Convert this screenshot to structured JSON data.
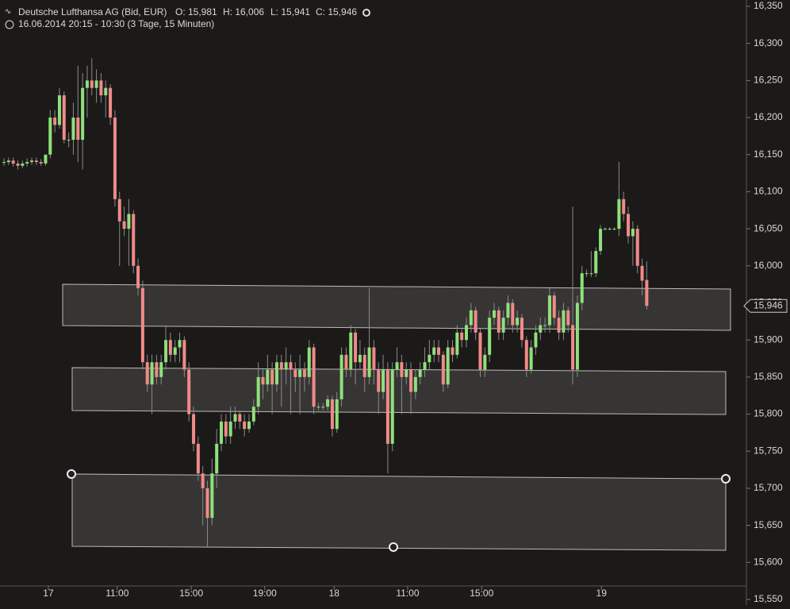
{
  "chart_data": {
    "type": "candlestick",
    "title": "Deutsche Lufthansa AG (Bid, EUR)",
    "subtitle": "16.06.2014 20:15 - 10:30 (3 Tage, 15 Minuten)",
    "ohlc_labels": [
      "O: 15,981",
      "H: 16,006",
      "L: 15,941",
      "C: 15,946"
    ],
    "last_price": {
      "value": 15.946,
      "label": "15,946"
    },
    "up_color": "#8fe07a",
    "down_color": "#f08a8a",
    "ylim": [
      15.55,
      16.35
    ],
    "yticks": [
      {
        "value": 15.55,
        "label": "15,550"
      },
      {
        "value": 15.6,
        "label": "15,600"
      },
      {
        "value": 15.65,
        "label": "15,650"
      },
      {
        "value": 15.7,
        "label": "15,700"
      },
      {
        "value": 15.75,
        "label": "15,750"
      },
      {
        "value": 15.8,
        "label": "15,800"
      },
      {
        "value": 15.85,
        "label": "15,850"
      },
      {
        "value": 15.9,
        "label": "15,900"
      },
      {
        "value": 15.95,
        "label": "15,950"
      },
      {
        "value": 16.0,
        "label": "16,000"
      },
      {
        "value": 16.05,
        "label": "16,050"
      },
      {
        "value": 16.1,
        "label": "16,100"
      },
      {
        "value": 16.15,
        "label": "16,150"
      },
      {
        "value": 16.2,
        "label": "16,200"
      },
      {
        "value": 16.25,
        "label": "16,250"
      },
      {
        "value": 16.3,
        "label": "16,300"
      },
      {
        "value": 16.35,
        "label": "16,350"
      }
    ],
    "xticks": [
      {
        "value": 9.6,
        "label": "17"
      },
      {
        "value": 24.5,
        "label": "11:00"
      },
      {
        "value": 40.5,
        "label": "15:00"
      },
      {
        "value": 56.4,
        "label": "19:00"
      },
      {
        "value": 71.4,
        "label": "18"
      },
      {
        "value": 87.3,
        "label": "11:00"
      },
      {
        "value": 103.3,
        "label": "15:00"
      },
      {
        "value": 129.2,
        "label": "19"
      }
    ],
    "candles": [
      [
        16.14,
        16.145,
        16.135,
        16.14
      ],
      [
        16.14,
        16.146,
        16.136,
        16.142
      ],
      [
        16.142,
        16.146,
        16.134,
        16.138
      ],
      [
        16.138,
        16.142,
        16.13,
        16.135
      ],
      [
        16.135,
        16.142,
        16.132,
        16.138
      ],
      [
        16.138,
        16.145,
        16.134,
        16.14
      ],
      [
        16.14,
        16.146,
        16.136,
        16.142
      ],
      [
        16.142,
        16.146,
        16.136,
        16.14
      ],
      [
        16.14,
        16.144,
        16.135,
        16.138
      ],
      [
        16.138,
        16.15,
        16.135,
        16.15
      ],
      [
        16.15,
        16.21,
        16.145,
        16.2
      ],
      [
        16.2,
        16.21,
        16.18,
        16.19
      ],
      [
        16.19,
        16.24,
        16.185,
        16.23
      ],
      [
        16.23,
        16.235,
        16.165,
        16.17
      ],
      [
        16.17,
        16.18,
        16.16,
        16.17
      ],
      [
        16.17,
        16.22,
        16.15,
        16.2
      ],
      [
        16.2,
        16.27,
        16.14,
        16.17
      ],
      [
        16.17,
        16.26,
        16.13,
        16.24
      ],
      [
        16.24,
        16.27,
        16.2,
        16.25
      ],
      [
        16.25,
        16.28,
        16.23,
        16.24
      ],
      [
        16.24,
        16.265,
        16.22,
        16.25
      ],
      [
        16.25,
        16.26,
        16.22,
        16.23
      ],
      [
        16.23,
        16.25,
        16.2,
        16.24
      ],
      [
        16.24,
        16.245,
        16.19,
        16.2
      ],
      [
        16.2,
        16.21,
        16.08,
        16.09
      ],
      [
        16.09,
        16.1,
        16.0,
        16.06
      ],
      [
        16.06,
        16.08,
        16.04,
        16.05
      ],
      [
        16.05,
        16.09,
        16.0,
        16.07
      ],
      [
        16.07,
        16.075,
        15.99,
        16.0
      ],
      [
        16.0,
        16.01,
        15.96,
        15.97
      ],
      [
        15.97,
        15.98,
        15.86,
        15.87
      ],
      [
        15.87,
        15.88,
        15.83,
        15.84
      ],
      [
        15.84,
        15.88,
        15.8,
        15.87
      ],
      [
        15.87,
        15.88,
        15.84,
        15.85
      ],
      [
        15.85,
        15.88,
        15.84,
        15.87
      ],
      [
        15.87,
        15.92,
        15.86,
        15.9
      ],
      [
        15.9,
        15.91,
        15.87,
        15.88
      ],
      [
        15.88,
        15.9,
        15.87,
        15.89
      ],
      [
        15.89,
        15.91,
        15.87,
        15.9
      ],
      [
        15.9,
        15.905,
        15.85,
        15.86
      ],
      [
        15.86,
        15.87,
        15.79,
        15.8
      ],
      [
        15.8,
        15.81,
        15.75,
        15.76
      ],
      [
        15.76,
        15.77,
        15.71,
        15.72
      ],
      [
        15.72,
        15.73,
        15.65,
        15.7
      ],
      [
        15.7,
        15.71,
        15.62,
        15.66
      ],
      [
        15.66,
        15.74,
        15.65,
        15.72
      ],
      [
        15.72,
        15.78,
        15.7,
        15.76
      ],
      [
        15.76,
        15.8,
        15.75,
        15.79
      ],
      [
        15.79,
        15.8,
        15.76,
        15.77
      ],
      [
        15.77,
        15.81,
        15.76,
        15.79
      ],
      [
        15.79,
        15.81,
        15.78,
        15.8
      ],
      [
        15.8,
        15.805,
        15.78,
        15.79
      ],
      [
        15.79,
        15.8,
        15.77,
        15.78
      ],
      [
        15.78,
        15.8,
        15.775,
        15.79
      ],
      [
        15.79,
        15.82,
        15.785,
        15.81
      ],
      [
        15.81,
        15.87,
        15.8,
        15.85
      ],
      [
        15.85,
        15.86,
        15.82,
        15.84
      ],
      [
        15.84,
        15.88,
        15.83,
        15.86
      ],
      [
        15.86,
        15.87,
        15.8,
        15.84
      ],
      [
        15.84,
        15.88,
        15.83,
        15.87
      ],
      [
        15.87,
        15.88,
        15.81,
        15.86
      ],
      [
        15.86,
        15.89,
        15.84,
        15.87
      ],
      [
        15.87,
        15.88,
        15.8,
        15.86
      ],
      [
        15.86,
        15.87,
        15.83,
        15.85
      ],
      [
        15.85,
        15.88,
        15.8,
        15.86
      ],
      [
        15.86,
        15.87,
        15.83,
        15.85
      ],
      [
        15.85,
        15.9,
        15.84,
        15.89
      ],
      [
        15.89,
        15.895,
        15.8,
        15.81
      ],
      [
        15.81,
        15.815,
        15.805,
        15.81
      ],
      [
        15.81,
        15.815,
        15.805,
        15.81
      ],
      [
        15.81,
        15.825,
        15.805,
        15.82
      ],
      [
        15.82,
        15.825,
        15.77,
        15.78
      ],
      [
        15.78,
        15.83,
        15.775,
        15.82
      ],
      [
        15.82,
        15.89,
        15.81,
        15.88
      ],
      [
        15.88,
        15.89,
        15.85,
        15.86
      ],
      [
        15.86,
        15.92,
        15.85,
        15.91
      ],
      [
        15.91,
        15.915,
        15.84,
        15.87
      ],
      [
        15.87,
        15.9,
        15.86,
        15.88
      ],
      [
        15.88,
        15.89,
        15.83,
        15.85
      ],
      [
        15.85,
        15.97,
        15.84,
        15.89
      ],
      [
        15.89,
        15.9,
        15.84,
        15.86
      ],
      [
        15.86,
        15.87,
        15.8,
        15.83
      ],
      [
        15.83,
        15.88,
        15.82,
        15.86
      ],
      [
        15.86,
        15.87,
        15.72,
        15.76
      ],
      [
        15.76,
        15.87,
        15.75,
        15.86
      ],
      [
        15.86,
        15.89,
        15.85,
        15.87
      ],
      [
        15.87,
        15.88,
        15.8,
        15.85
      ],
      [
        15.85,
        15.87,
        15.84,
        15.86
      ],
      [
        15.86,
        15.87,
        15.8,
        15.83
      ],
      [
        15.83,
        15.86,
        15.82,
        15.85
      ],
      [
        15.85,
        15.87,
        15.84,
        15.86
      ],
      [
        15.86,
        15.89,
        15.85,
        15.87
      ],
      [
        15.87,
        15.9,
        15.86,
        15.88
      ],
      [
        15.88,
        15.9,
        15.87,
        15.89
      ],
      [
        15.89,
        15.9,
        15.87,
        15.88
      ],
      [
        15.88,
        15.885,
        15.83,
        15.84
      ],
      [
        15.84,
        15.9,
        15.835,
        15.89
      ],
      [
        15.89,
        15.9,
        15.87,
        15.88
      ],
      [
        15.88,
        15.92,
        15.875,
        15.91
      ],
      [
        15.91,
        15.915,
        15.89,
        15.9
      ],
      [
        15.9,
        15.93,
        15.89,
        15.92
      ],
      [
        15.92,
        15.95,
        15.91,
        15.94
      ],
      [
        15.94,
        15.945,
        15.9,
        15.91
      ],
      [
        15.91,
        15.915,
        15.85,
        15.86
      ],
      [
        15.86,
        15.89,
        15.85,
        15.88
      ],
      [
        15.88,
        15.94,
        15.87,
        15.93
      ],
      [
        15.93,
        15.95,
        15.92,
        15.94
      ],
      [
        15.94,
        15.945,
        15.9,
        15.91
      ],
      [
        15.91,
        15.94,
        15.9,
        15.93
      ],
      [
        15.93,
        15.96,
        15.92,
        15.95
      ],
      [
        15.95,
        15.955,
        15.91,
        15.92
      ],
      [
        15.92,
        15.94,
        15.91,
        15.93
      ],
      [
        15.93,
        15.935,
        15.89,
        15.9
      ],
      [
        15.9,
        15.905,
        15.85,
        15.86
      ],
      [
        15.86,
        15.9,
        15.855,
        15.89
      ],
      [
        15.89,
        15.92,
        15.88,
        15.91
      ],
      [
        15.91,
        15.93,
        15.9,
        15.92
      ],
      [
        15.92,
        15.93,
        15.91,
        15.92
      ],
      [
        15.92,
        15.97,
        15.91,
        15.96
      ],
      [
        15.96,
        15.965,
        15.92,
        15.93
      ],
      [
        15.93,
        15.94,
        15.9,
        15.91
      ],
      [
        15.91,
        15.95,
        15.9,
        15.94
      ],
      [
        15.94,
        15.945,
        15.91,
        15.92
      ],
      [
        15.92,
        16.08,
        15.84,
        15.86
      ],
      [
        15.86,
        15.96,
        15.85,
        15.95
      ],
      [
        15.95,
        16.0,
        15.94,
        15.99
      ],
      [
        15.99,
        15.995,
        15.985,
        15.99
      ],
      [
        15.99,
        16.02,
        15.985,
        15.99
      ],
      [
        15.99,
        16.025,
        15.985,
        16.02
      ],
      [
        16.02,
        16.055,
        16.015,
        16.05
      ],
      [
        16.05,
        16.052,
        16.048,
        16.05
      ],
      [
        16.05,
        16.052,
        16.048,
        16.05
      ],
      [
        16.05,
        16.052,
        16.048,
        16.05
      ],
      [
        16.05,
        16.14,
        16.04,
        16.09
      ],
      [
        16.09,
        16.1,
        16.06,
        16.07
      ],
      [
        16.07,
        16.08,
        16.03,
        16.04
      ],
      [
        16.04,
        16.06,
        16.0,
        16.05
      ],
      [
        16.05,
        16.055,
        15.99,
        16.0
      ],
      [
        16.0,
        16.01,
        15.96,
        15.98
      ],
      [
        15.981,
        16.006,
        15.941,
        15.946
      ]
    ]
  }
}
